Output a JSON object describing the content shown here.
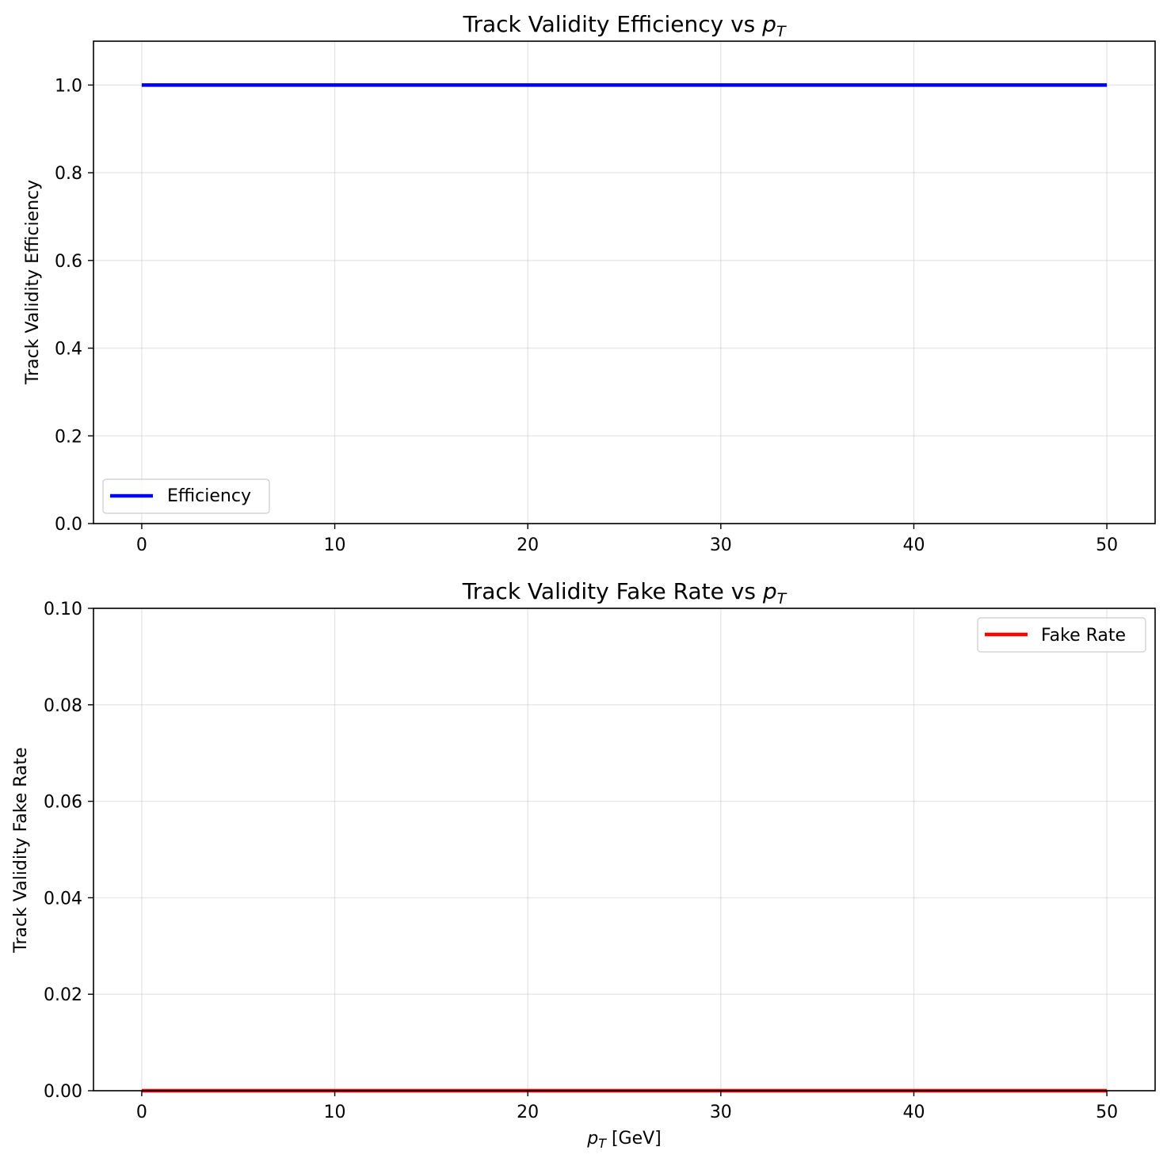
{
  "chart_data": [
    {
      "type": "line",
      "title": "Track Validity Efficiency vs",
      "title_math": "p",
      "title_math_sub": "T",
      "xlabel": "",
      "ylabel": "Track Validity Efficiency",
      "xlim": [
        -2.5,
        52.5
      ],
      "ylim": [
        0.0,
        1.1
      ],
      "xticks": [
        0,
        10,
        20,
        30,
        40,
        50
      ],
      "xtick_labels": [
        "0",
        "10",
        "20",
        "30",
        "40",
        "50"
      ],
      "yticks": [
        0.0,
        0.2,
        0.4,
        0.6,
        0.8,
        1.0
      ],
      "ytick_labels": [
        "0.0",
        "0.2",
        "0.4",
        "0.6",
        "0.8",
        "1.0"
      ],
      "grid": true,
      "legend_position": "lower-left",
      "series": [
        {
          "name": "Efficiency",
          "color": "#0000ff",
          "x": [
            0,
            50
          ],
          "y": [
            1.0,
            1.0
          ]
        }
      ]
    },
    {
      "type": "line",
      "title": "Track Validity Fake Rate vs",
      "title_math": "p",
      "title_math_sub": "T",
      "xlabel_math": "p",
      "xlabel_math_sub": "T",
      "xlabel_text": " [GeV]",
      "ylabel": "Track Validity Fake Rate",
      "xlim": [
        -2.5,
        52.5
      ],
      "ylim": [
        0.0,
        0.1
      ],
      "xticks": [
        0,
        10,
        20,
        30,
        40,
        50
      ],
      "xtick_labels": [
        "0",
        "10",
        "20",
        "30",
        "40",
        "50"
      ],
      "yticks": [
        0.0,
        0.02,
        0.04,
        0.06,
        0.08,
        0.1
      ],
      "ytick_labels": [
        "0.00",
        "0.02",
        "0.04",
        "0.06",
        "0.08",
        "0.10"
      ],
      "grid": true,
      "legend_position": "upper-right",
      "series": [
        {
          "name": "Fake Rate",
          "color": "#ff0000",
          "x": [
            0,
            50
          ],
          "y": [
            0.0,
            0.0
          ]
        }
      ]
    }
  ]
}
